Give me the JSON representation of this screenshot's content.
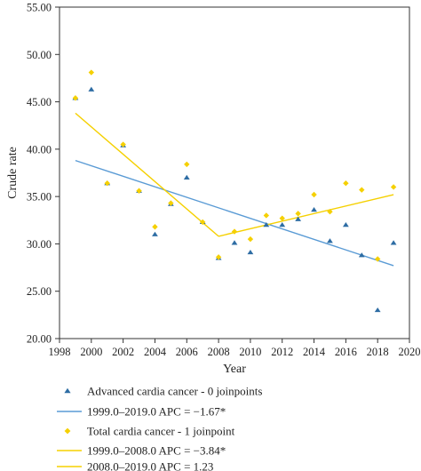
{
  "chart_data": {
    "type": "scatter",
    "title": "",
    "xlabel": "Year",
    "ylabel": "Crude rate",
    "xlim": [
      1998,
      2020
    ],
    "ylim": [
      20,
      55
    ],
    "x_ticks": [
      1998,
      2000,
      2002,
      2004,
      2006,
      2008,
      2010,
      2012,
      2014,
      2016,
      2018,
      2020
    ],
    "y_ticks": [
      "20.00",
      "25.00",
      "30.00",
      "35.00",
      "40.00",
      "45.00",
      "50.00",
      "55.00"
    ],
    "grid": false,
    "legend_position": "bottom",
    "colors": {
      "advanced": "#2e6da4",
      "advanced_line": "#5a9bd5",
      "total": "#f5d000",
      "total_line": "#f5d000"
    },
    "series": [
      {
        "name": "Advanced cardia cancer - 0 joinpoints",
        "marker": "triangle",
        "x": [
          1999,
          2000,
          2001,
          2002,
          2003,
          2004,
          2005,
          2006,
          2007,
          2008,
          2009,
          2010,
          2011,
          2012,
          2013,
          2014,
          2015,
          2016,
          2017,
          2018,
          2019
        ],
        "y": [
          45.4,
          46.3,
          36.4,
          40.4,
          35.6,
          31.0,
          34.2,
          37.0,
          32.3,
          28.5,
          30.1,
          29.1,
          32.0,
          32.0,
          32.6,
          33.6,
          30.3,
          32.0,
          28.8,
          23.0,
          30.1
        ]
      },
      {
        "name": "Total cardia cancer - 1 joinpoint",
        "marker": "diamond",
        "x": [
          1999,
          2000,
          2001,
          2002,
          2003,
          2004,
          2005,
          2006,
          2007,
          2008,
          2009,
          2010,
          2011,
          2012,
          2013,
          2014,
          2015,
          2016,
          2017,
          2018,
          2019
        ],
        "y": [
          45.4,
          48.1,
          36.4,
          40.5,
          35.6,
          31.8,
          34.3,
          38.4,
          32.3,
          28.6,
          31.3,
          30.5,
          33.0,
          32.7,
          33.2,
          35.2,
          33.4,
          36.4,
          35.7,
          28.4,
          36.0
        ]
      }
    ],
    "trend_lines": [
      {
        "name": "1999.0–2019.0 APC = −1.67*",
        "x": [
          1999,
          2019
        ],
        "y": [
          38.8,
          27.7
        ]
      },
      {
        "name": "1999.0–2008.0 APC = −3.84*",
        "x": [
          1999,
          2008
        ],
        "y": [
          43.8,
          30.8
        ]
      },
      {
        "name": "2008.0–2019.0 APC = 1.23",
        "x": [
          2008,
          2019
        ],
        "y": [
          30.8,
          35.2
        ]
      }
    ]
  }
}
